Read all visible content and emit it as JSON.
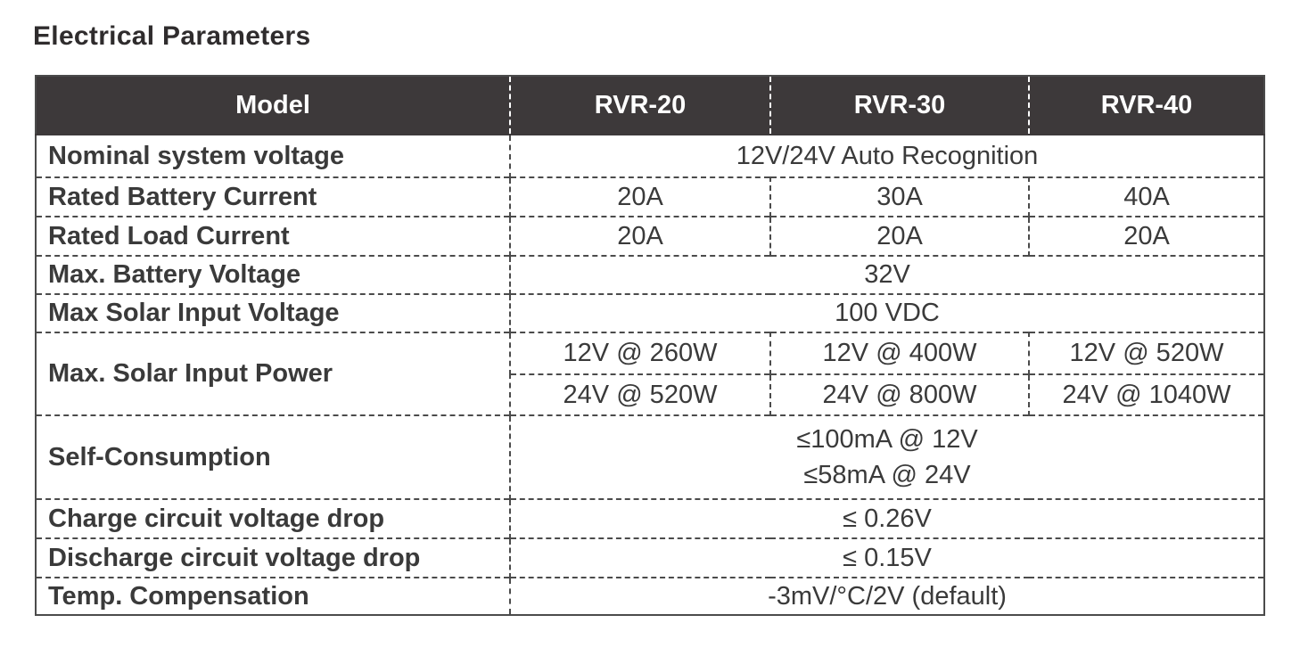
{
  "page_title": "Electrical Parameters",
  "table": {
    "header": {
      "model": "Model",
      "columns": [
        "RVR-20",
        "RVR-30",
        "RVR-40"
      ]
    },
    "rows": [
      {
        "label": "Nominal system voltage",
        "value": "12V/24V Auto Recognition"
      },
      {
        "label": "Rated Battery Current",
        "values": [
          "20A",
          "30A",
          "40A"
        ]
      },
      {
        "label": "Rated Load Current",
        "values": [
          "20A",
          "20A",
          "20A"
        ]
      },
      {
        "label": "Max. Battery Voltage",
        "value": "32V"
      },
      {
        "label": "Max Solar Input Voltage",
        "value": "100 VDC"
      },
      {
        "label": "Max. Solar Input Power",
        "subrows": [
          [
            "12V @ 260W",
            "12V @ 400W",
            "12V @ 520W"
          ],
          [
            "24V @ 520W",
            "24V @ 800W",
            "24V @ 1040W"
          ]
        ]
      },
      {
        "label": "Self-Consumption",
        "lines": [
          "≤100mA @ 12V",
          "≤58mA @ 24V"
        ]
      },
      {
        "label": "Charge circuit voltage drop",
        "value": "≤ 0.26V"
      },
      {
        "label": "Discharge circuit voltage drop",
        "value": "≤ 0.15V"
      },
      {
        "label": "Temp. Compensation",
        "value": "-3mV/°C/2V (default)"
      }
    ],
    "colors": {
      "header_bg": "#3d393a",
      "header_text": "#ffffff",
      "body_text": "#3a3a3a",
      "border": "#4b4b4b"
    }
  }
}
